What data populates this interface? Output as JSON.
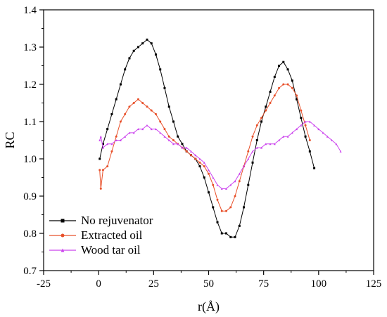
{
  "chart_data": {
    "type": "line",
    "title": "",
    "xlabel": "r(Å)",
    "ylabel": "RC",
    "xlim": [
      -25,
      125
    ],
    "ylim": [
      0.7,
      1.4
    ],
    "xticks": [
      -25,
      0,
      25,
      50,
      75,
      100,
      125
    ],
    "yticks": [
      0.7,
      0.8,
      0.9,
      1.0,
      1.1,
      1.2,
      1.3,
      1.4
    ],
    "xtick_labels": [
      "-25",
      "0",
      "25",
      "50",
      "75",
      "100",
      "125"
    ],
    "ytick_labels": [
      "0.7",
      "0.8",
      "0.9",
      "1.0",
      "1.1",
      "1.2",
      "1.3",
      "1.4"
    ],
    "grid": false,
    "legend_position": "bottom-left",
    "series": [
      {
        "name": "No rejuvenator",
        "color": "#000000",
        "marker": "square",
        "x": [
          0.5,
          2,
          4,
          6,
          8,
          10,
          12,
          14,
          16,
          18,
          20,
          22,
          24,
          26,
          28,
          30,
          32,
          34,
          36,
          38,
          40,
          42,
          44,
          46,
          48,
          50,
          52,
          54,
          56,
          58,
          60,
          62,
          64,
          66,
          68,
          70,
          72,
          74,
          76,
          78,
          80,
          82,
          84,
          86,
          88,
          90,
          92,
          94,
          96,
          98
        ],
        "y": [
          1.0,
          1.04,
          1.08,
          1.12,
          1.16,
          1.2,
          1.24,
          1.27,
          1.29,
          1.3,
          1.31,
          1.32,
          1.31,
          1.28,
          1.24,
          1.19,
          1.14,
          1.1,
          1.06,
          1.04,
          1.02,
          1.01,
          1.0,
          0.98,
          0.95,
          0.91,
          0.87,
          0.83,
          0.8,
          0.8,
          0.79,
          0.79,
          0.82,
          0.87,
          0.93,
          0.99,
          1.05,
          1.1,
          1.14,
          1.18,
          1.22,
          1.25,
          1.26,
          1.24,
          1.21,
          1.16,
          1.11,
          1.06,
          1.02,
          0.975
        ]
      },
      {
        "name": "Extracted oil",
        "color": "#e8502a",
        "marker": "circle",
        "x": [
          0.5,
          1,
          2,
          4,
          6,
          8,
          10,
          12,
          14,
          16,
          18,
          20,
          22,
          24,
          26,
          28,
          30,
          32,
          34,
          36,
          38,
          40,
          42,
          44,
          46,
          48,
          50,
          52,
          54,
          56,
          58,
          60,
          62,
          64,
          66,
          68,
          70,
          72,
          74,
          76,
          78,
          80,
          82,
          84,
          86,
          88,
          90,
          92,
          94,
          96
        ],
        "y": [
          0.97,
          0.92,
          0.97,
          0.98,
          1.02,
          1.06,
          1.1,
          1.12,
          1.14,
          1.15,
          1.16,
          1.15,
          1.14,
          1.13,
          1.12,
          1.1,
          1.08,
          1.06,
          1.05,
          1.04,
          1.03,
          1.02,
          1.01,
          1.0,
          0.99,
          0.98,
          0.96,
          0.93,
          0.89,
          0.86,
          0.86,
          0.87,
          0.9,
          0.94,
          0.98,
          1.02,
          1.06,
          1.09,
          1.11,
          1.13,
          1.15,
          1.17,
          1.19,
          1.2,
          1.2,
          1.19,
          1.17,
          1.13,
          1.09,
          1.05
        ]
      },
      {
        "name": "Wood tar oil",
        "color": "#cc44ee",
        "marker": "triangle",
        "x": [
          0.5,
          1,
          2,
          4,
          6,
          8,
          10,
          12,
          14,
          16,
          18,
          20,
          22,
          24,
          26,
          28,
          30,
          32,
          34,
          36,
          38,
          40,
          42,
          44,
          46,
          48,
          50,
          52,
          54,
          56,
          58,
          60,
          62,
          64,
          66,
          68,
          70,
          72,
          74,
          76,
          78,
          80,
          82,
          84,
          86,
          88,
          90,
          92,
          94,
          96,
          98,
          100,
          102,
          104,
          106,
          108,
          110
        ],
        "y": [
          1.05,
          1.06,
          1.03,
          1.04,
          1.04,
          1.05,
          1.05,
          1.06,
          1.07,
          1.07,
          1.08,
          1.08,
          1.09,
          1.08,
          1.08,
          1.07,
          1.06,
          1.05,
          1.04,
          1.04,
          1.03,
          1.03,
          1.02,
          1.01,
          1.0,
          0.99,
          0.97,
          0.95,
          0.93,
          0.92,
          0.92,
          0.93,
          0.94,
          0.96,
          0.98,
          1.0,
          1.02,
          1.03,
          1.03,
          1.04,
          1.04,
          1.04,
          1.05,
          1.06,
          1.06,
          1.07,
          1.08,
          1.09,
          1.1,
          1.1,
          1.09,
          1.08,
          1.07,
          1.06,
          1.05,
          1.04,
          1.02
        ]
      }
    ]
  }
}
